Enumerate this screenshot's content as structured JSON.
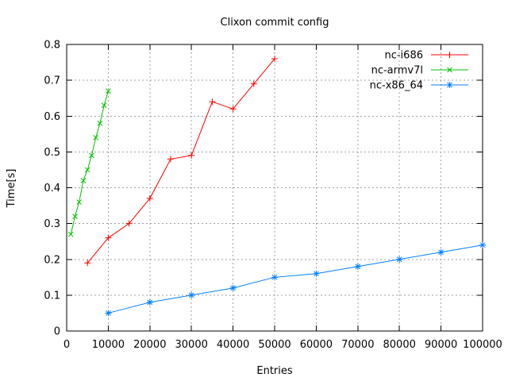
{
  "chart_data": {
    "type": "line",
    "title": "Clixon commit config",
    "xlabel": "Entries",
    "ylabel": "Time[s]",
    "xlim": [
      0,
      100000
    ],
    "ylim": [
      0,
      0.8
    ],
    "x_ticks": [
      0,
      10000,
      20000,
      30000,
      40000,
      50000,
      60000,
      70000,
      80000,
      90000,
      100000
    ],
    "y_ticks": [
      0,
      0.1,
      0.2,
      0.3,
      0.4,
      0.5,
      0.6,
      0.7,
      0.8
    ],
    "grid": true,
    "legend_position": "top-right-inside",
    "series": [
      {
        "name": "nc-i686",
        "color": "#ff0000",
        "marker": "plus",
        "x": [
          5000,
          10000,
          15000,
          20000,
          25000,
          30000,
          35000,
          40000,
          45000,
          50000
        ],
        "y": [
          0.19,
          0.26,
          0.3,
          0.37,
          0.48,
          0.49,
          0.64,
          0.62,
          0.69,
          0.76
        ]
      },
      {
        "name": "nc-armv7l",
        "color": "#00c000",
        "marker": "cross",
        "x": [
          1000,
          2000,
          3000,
          4000,
          5000,
          6000,
          7000,
          8000,
          9000,
          10000
        ],
        "y": [
          0.27,
          0.32,
          0.36,
          0.42,
          0.45,
          0.49,
          0.54,
          0.58,
          0.63,
          0.67
        ]
      },
      {
        "name": "nc-x86_64",
        "color": "#0080ff",
        "marker": "asterisk",
        "x": [
          10000,
          20000,
          30000,
          40000,
          50000,
          60000,
          70000,
          80000,
          90000,
          100000
        ],
        "y": [
          0.05,
          0.08,
          0.1,
          0.12,
          0.15,
          0.16,
          0.18,
          0.2,
          0.22,
          0.24
        ]
      }
    ]
  },
  "colors": {
    "background": "#ffffff",
    "text": "#000000",
    "border": "#000000",
    "grid": "#a0a0a0"
  }
}
